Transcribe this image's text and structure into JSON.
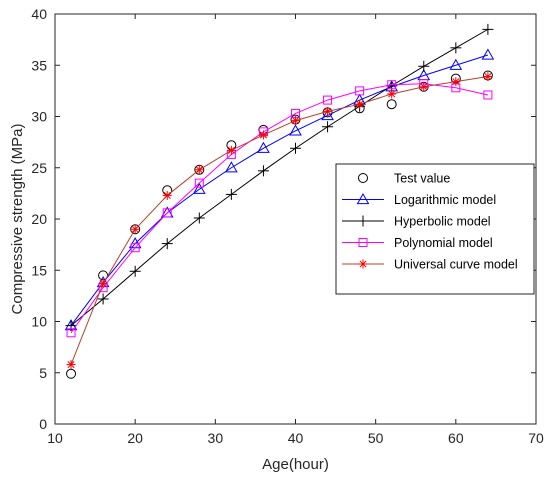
{
  "chart_data": {
    "type": "line",
    "xlabel": "Age(hour)",
    "ylabel": "Compressive strength (MPa)",
    "xlim": [
      10,
      70
    ],
    "ylim": [
      0,
      40
    ],
    "xticks": [
      10,
      20,
      30,
      40,
      50,
      60,
      70
    ],
    "yticks": [
      0,
      5,
      10,
      15,
      20,
      25,
      30,
      35,
      40
    ],
    "grid": false,
    "legend_position": "right",
    "series": [
      {
        "name": "Test value",
        "marker": "circle",
        "line": false,
        "color": "#000000",
        "x": [
          12,
          16,
          20,
          24,
          28,
          32,
          36,
          40,
          44,
          48,
          52,
          56,
          60,
          64
        ],
        "y": [
          4.9,
          14.5,
          19.0,
          22.8,
          24.8,
          27.2,
          28.7,
          29.7,
          30.4,
          30.8,
          31.2,
          32.9,
          33.7,
          34.0
        ]
      },
      {
        "name": "Logarithmic model",
        "marker": "triangle",
        "line": true,
        "color": "#0000ff",
        "x": [
          12,
          16,
          20,
          24,
          28,
          32,
          36,
          40,
          44,
          48,
          52,
          56,
          60,
          64
        ],
        "y": [
          9.6,
          13.8,
          17.6,
          20.6,
          22.9,
          25.0,
          26.9,
          28.6,
          30.1,
          31.6,
          32.9,
          34.0,
          35.0,
          36.0
        ]
      },
      {
        "name": "Hyperbolic model",
        "marker": "plus",
        "line": true,
        "color": "#000000",
        "x": [
          12,
          16,
          20,
          24,
          28,
          32,
          36,
          40,
          44,
          48,
          52,
          56,
          60,
          64
        ],
        "y": [
          9.6,
          12.2,
          14.9,
          17.6,
          20.1,
          22.4,
          24.7,
          26.9,
          29.0,
          31.0,
          33.0,
          34.9,
          36.7,
          38.5
        ]
      },
      {
        "name": "Polynomial model",
        "marker": "square",
        "line": true,
        "color": "#ff00ff",
        "x": [
          12,
          16,
          20,
          24,
          28,
          32,
          36,
          40,
          44,
          48,
          52,
          56,
          60,
          64
        ],
        "y": [
          8.9,
          13.3,
          17.2,
          20.6,
          23.5,
          26.3,
          28.5,
          30.3,
          31.6,
          32.5,
          33.1,
          33.2,
          32.8,
          32.1
        ]
      },
      {
        "name": "Universal curve model",
        "marker": "asterisk",
        "line": true,
        "color": "#ff0000",
        "lineColor": "#b5422e",
        "x": [
          12,
          16,
          20,
          24,
          28,
          32,
          36,
          40,
          44,
          48,
          52,
          56,
          60,
          64
        ],
        "y": [
          5.8,
          13.7,
          19.0,
          22.3,
          24.8,
          26.7,
          28.2,
          29.6,
          30.5,
          31.2,
          32.2,
          32.9,
          33.4,
          33.9
        ]
      }
    ]
  }
}
